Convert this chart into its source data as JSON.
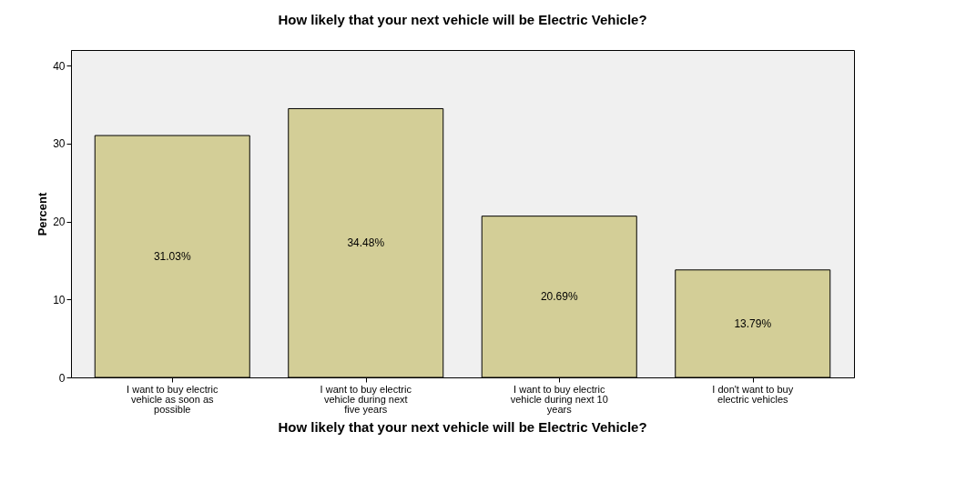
{
  "chart_data": {
    "type": "bar",
    "title": "How likely that your next vehicle will be Electric Vehicle?",
    "xlabel": "How likely that your next vehicle will be Electric Vehicle?",
    "ylabel": "Percent",
    "categories": [
      "I want to buy electric vehicle as soon as possible",
      "I want to buy electric vehicle during next five years",
      "I want to buy electric vehicle during next 10 years",
      "I don't want to buy electric vehicles"
    ],
    "values": [
      31.03,
      34.48,
      20.69,
      13.79
    ],
    "value_labels": [
      "31.03%",
      "34.48%",
      "20.69%",
      "13.79%"
    ],
    "color": "#d3ce97",
    "ylim": [
      0,
      42
    ],
    "yticks": [
      0,
      10,
      20,
      30,
      40
    ],
    "grid": false
  }
}
